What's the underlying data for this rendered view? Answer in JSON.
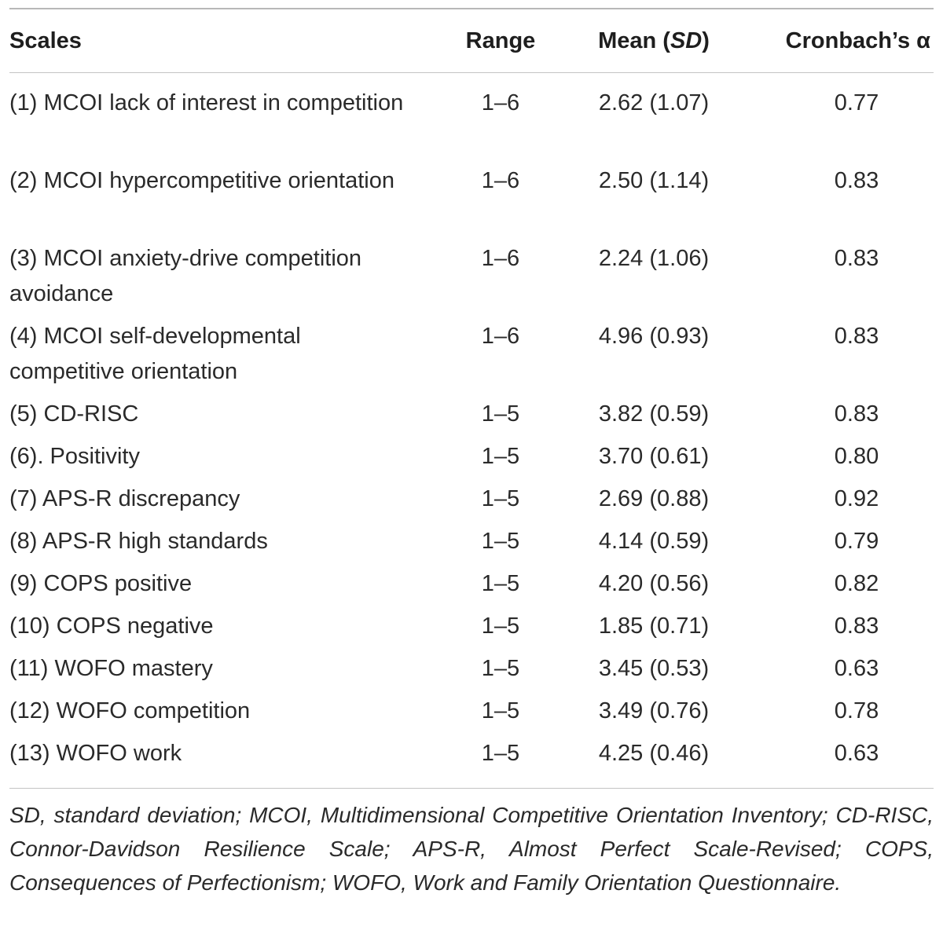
{
  "table": {
    "headers": {
      "scales": "Scales",
      "range": "Range",
      "mean_prefix": "Mean (",
      "mean_sd": "SD",
      "mean_suffix": ")",
      "alpha": "Cronbach’s α"
    },
    "rows": [
      {
        "scale": "(1) MCOI lack of interest in competition",
        "range": "1–6",
        "mean": "2.62 (1.07)",
        "alpha": "0.77"
      },
      {
        "scale": "(2) MCOI hypercompetitive orientation",
        "range": "1–6",
        "mean": "2.50 (1.14)",
        "alpha": "0.83"
      },
      {
        "scale": "(3) MCOI anxiety-drive competition avoidance",
        "range": "1–6",
        "mean": "2.24 (1.06)",
        "alpha": "0.83"
      },
      {
        "scale": "(4) MCOI self-developmental competitive orientation",
        "range": "1–6",
        "mean": "4.96 (0.93)",
        "alpha": "0.83"
      },
      {
        "scale": "(5) CD-RISC",
        "range": "1–5",
        "mean": "3.82 (0.59)",
        "alpha": "0.83"
      },
      {
        "scale": "(6). Positivity",
        "range": "1–5",
        "mean": "3.70 (0.61)",
        "alpha": "0.80"
      },
      {
        "scale": "(7) APS-R discrepancy",
        "range": "1–5",
        "mean": "2.69 (0.88)",
        "alpha": "0.92"
      },
      {
        "scale": "(8) APS-R high standards",
        "range": "1–5",
        "mean": "4.14 (0.59)",
        "alpha": "0.79"
      },
      {
        "scale": "(9) COPS positive",
        "range": "1–5",
        "mean": "4.20 (0.56)",
        "alpha": "0.82"
      },
      {
        "scale": "(10) COPS negative",
        "range": "1–5",
        "mean": "1.85 (0.71)",
        "alpha": "0.83"
      },
      {
        "scale": "(11) WOFO mastery",
        "range": "1–5",
        "mean": "3.45 (0.53)",
        "alpha": "0.63"
      },
      {
        "scale": "(12) WOFO competition",
        "range": "1–5",
        "mean": "3.49 (0.76)",
        "alpha": "0.78"
      },
      {
        "scale": "(13) WOFO work",
        "range": "1–5",
        "mean": "4.25 (0.46)",
        "alpha": "0.63"
      }
    ]
  },
  "footnote": "SD, standard deviation; MCOI, Multidimensional Competitive Orientation Inventory; CD-RISC, Connor-Davidson Resilience Scale; APS-R, Almost Perfect Scale-Revised; COPS, Consequences of Perfectionism; WOFO, Work and Family Orientation Questionnaire."
}
